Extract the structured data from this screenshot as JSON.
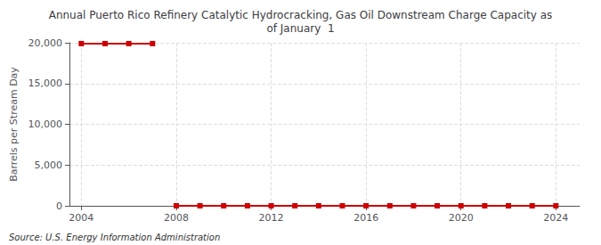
{
  "chart_data": {
    "type": "line",
    "title": "Annual Puerto Rico Refinery Catalytic Hydrocracking, Gas Oil Downstream Charge Capacity as\nof January  1",
    "ylabel": "Barrels per Stream Day",
    "annotations": [
      "Source: U.S. Energy Information Administration"
    ],
    "x": [
      2004,
      2005,
      2006,
      2007,
      2008,
      2009,
      2010,
      2011,
      2012,
      2013,
      2014,
      2015,
      2016,
      2017,
      2018,
      2019,
      2020,
      2021,
      2022,
      2023,
      2024
    ],
    "series": [
      {
        "color": "#cc0000",
        "marker": "square",
        "values": [
          19900,
          19900,
          19900,
          19900,
          null,
          null,
          null,
          null,
          null,
          null,
          null,
          null,
          null,
          null,
          null,
          null,
          null,
          null,
          null,
          null,
          null
        ]
      },
      {
        "color": "#cc0000",
        "marker": "square",
        "values": [
          null,
          null,
          null,
          null,
          0,
          0,
          0,
          0,
          0,
          0,
          0,
          0,
          0,
          0,
          0,
          0,
          0,
          0,
          0,
          0,
          0
        ]
      }
    ],
    "xlim": [
      2003.5,
      2025.0
    ],
    "xticks": [
      2004,
      2008,
      2012,
      2016,
      2020,
      2024
    ],
    "ylim": [
      0,
      20000
    ],
    "yticks": [
      0,
      {
        "value": 5000,
        "label": "5,000"
      },
      {
        "value": 10000,
        "label": "10,000"
      },
      {
        "value": 15000,
        "label": "15,000"
      },
      {
        "value": 20000,
        "label": "20,000"
      }
    ],
    "grid": true
  }
}
